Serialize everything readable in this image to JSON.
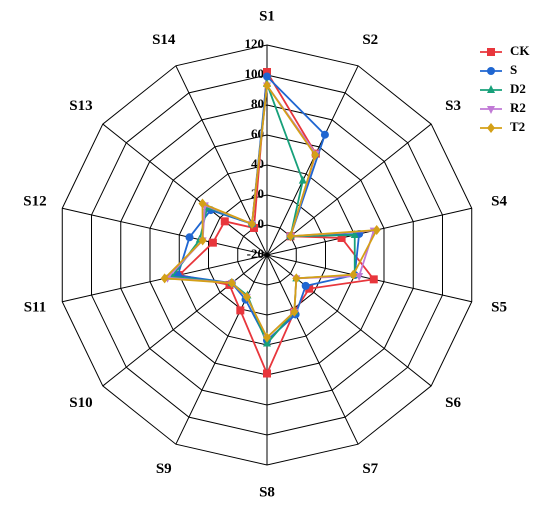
{
  "chart_data": {
    "type": "radar",
    "categories": [
      "S1",
      "S2",
      "S3",
      "S4",
      "S5",
      "S6",
      "S7",
      "S8",
      "S9",
      "S10",
      "S11",
      "S12",
      "S13",
      "S14"
    ],
    "rlim": [
      -20,
      120
    ],
    "rticks": [
      -20,
      0,
      20,
      40,
      60,
      80,
      100,
      120
    ],
    "series": [
      {
        "name": "CK",
        "color": "#e8363c",
        "marker": "square",
        "values": [
          102,
          55,
          0,
          31,
          53,
          16,
          22,
          59,
          21,
          12,
          40,
          17,
          16,
          0
        ]
      },
      {
        "name": "S",
        "color": "#1f66d1",
        "marker": "circle",
        "values": [
          99,
          69,
          0,
          43,
          40,
          13,
          24,
          37,
          13,
          10,
          41,
          33,
          28,
          3
        ]
      },
      {
        "name": "D2",
        "color": "#17a07a",
        "marker": "triangle-up",
        "values": [
          94,
          35,
          0,
          40,
          40,
          5,
          22,
          39,
          10,
          10,
          45,
          26,
          31,
          3
        ]
      },
      {
        "name": "R2",
        "color": "#c17ad6",
        "marker": "triangle-down",
        "values": [
          93,
          55,
          0,
          53,
          43,
          5,
          22,
          35,
          11,
          10,
          48,
          24,
          33,
          3
        ]
      },
      {
        "name": "T2",
        "color": "#d4a017",
        "marker": "diamond",
        "values": [
          93,
          54,
          0,
          55,
          39,
          5,
          22,
          35,
          11,
          10,
          50,
          24,
          35,
          3
        ]
      }
    ]
  }
}
